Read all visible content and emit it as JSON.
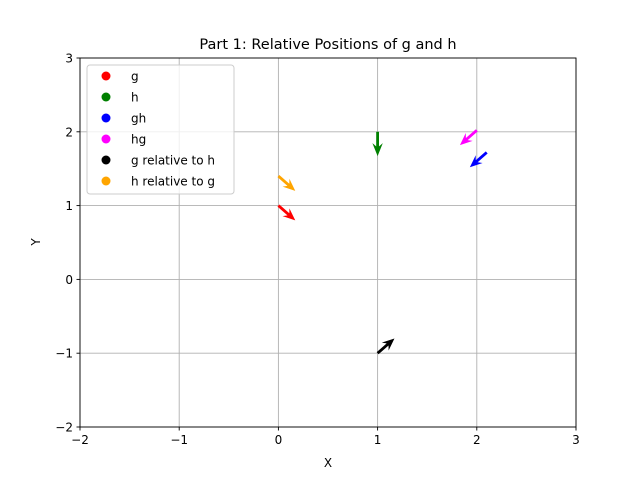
{
  "chart_data": {
    "type": "quiver",
    "title": "Part 1: Relative Positions of g and h",
    "xlabel": "X",
    "ylabel": "Y",
    "xlim": [
      -2,
      3
    ],
    "ylim": [
      -2,
      3
    ],
    "xticks": [
      -2,
      -1,
      0,
      1,
      2,
      3
    ],
    "yticks": [
      -2,
      -1,
      0,
      1,
      2,
      3
    ],
    "xtick_labels": [
      "−2",
      "−1",
      "0",
      "1",
      "2",
      "3"
    ],
    "ytick_labels": [
      "−2",
      "−1",
      "0",
      "1",
      "2",
      "3"
    ],
    "grid": true,
    "legend_position": "upper-left",
    "series": [
      {
        "name": "g",
        "color": "#ff0000",
        "x": 0.0,
        "y": 1.0,
        "u": 0.17,
        "v": -0.2
      },
      {
        "name": "h",
        "color": "#008000",
        "x": 1.0,
        "y": 2.0,
        "u": 0.0,
        "v": -0.33
      },
      {
        "name": "gh",
        "color": "#0000ff",
        "x": 2.1,
        "y": 1.72,
        "u": -0.17,
        "v": -0.2
      },
      {
        "name": "hg",
        "color": "#ff00ff",
        "x": 2.0,
        "y": 2.02,
        "u": -0.17,
        "v": -0.2
      },
      {
        "name": "g relative to h",
        "color": "#000000",
        "x": 1.0,
        "y": -1.0,
        "u": 0.17,
        "v": 0.2
      },
      {
        "name": "h relative to g",
        "color": "#ffa500",
        "x": 0.0,
        "y": 1.4,
        "u": 0.17,
        "v": -0.2
      }
    ]
  }
}
